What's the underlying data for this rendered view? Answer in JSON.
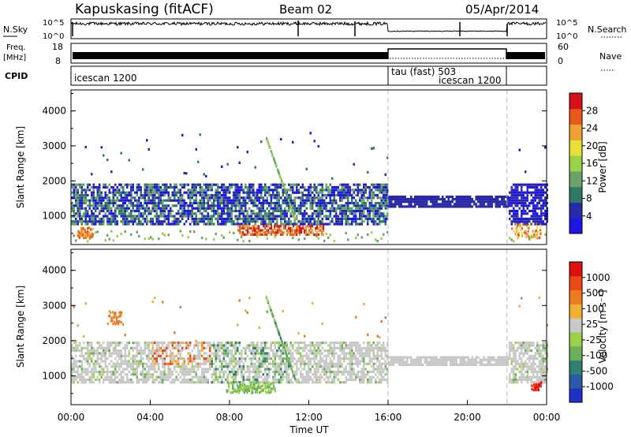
{
  "header": {
    "title": "Kapuskasing (fitACF)",
    "beam": "Beam 02",
    "date": "05/Apr/2014"
  },
  "strips": {
    "nsky_label": "N.Sky",
    "nsky_ticks": [
      "10^5",
      "10^0"
    ],
    "nsky_right_ticks": [
      "10^5",
      "10^0"
    ],
    "nsearch_label": "N.Search",
    "freq_label": "Freq.",
    "freq_unit": "[MHz]",
    "freq_ticks": [
      "18",
      "8"
    ],
    "nave_ticks": [
      "60",
      "0"
    ],
    "nave_label": "Nave",
    "cpid_label": "CPID",
    "cpid_segments": [
      {
        "label": "icescan 1200",
        "start_h": 0,
        "end_h": 16
      },
      {
        "label": "tau (fast) 503",
        "start_h": 16,
        "end_h": 22
      },
      {
        "label": "icescan 1200",
        "start_h": 16,
        "end_h": 22,
        "offset": true
      }
    ]
  },
  "chart_data": [
    {
      "type": "heatmap",
      "name": "power",
      "ylabel": "Slant Range [km]",
      "xlabel": "",
      "xlim": [
        0,
        24
      ],
      "ylim": [
        180,
        4600
      ],
      "yticks": [
        "1000",
        "2000",
        "3000",
        "4000"
      ],
      "colorbar": {
        "label": "Power [dB]",
        "ticks": [
          "4",
          "8",
          "12",
          "16",
          "20",
          "24",
          "28"
        ],
        "colors": [
          "#1e16e6",
          "#2a2aa8",
          "#2e7a66",
          "#6aa36a",
          "#9ad14a",
          "#e8e03a",
          "#f0a030",
          "#e85a1a",
          "#d8101a"
        ]
      }
    },
    {
      "type": "heatmap",
      "name": "velocity",
      "ylabel": "Slant Range [km]",
      "xlabel": "Time UT",
      "xlim": [
        0,
        24
      ],
      "ylim": [
        180,
        4600
      ],
      "yticks": [
        "1000",
        "2000",
        "3000",
        "4000"
      ],
      "xticks": [
        "00:00",
        "04:00",
        "08:00",
        "12:00",
        "16:00",
        "20:00",
        "00:00"
      ],
      "colorbar": {
        "label": "Velocity [m s⁻¹]",
        "ticks": [
          "1000",
          "500",
          "100",
          "25",
          "-25",
          "-100",
          "-500",
          "-1000"
        ],
        "colors": [
          "#2030c8",
          "#2a5aa8",
          "#2e8070",
          "#6ab05a",
          "#9ad04a",
          "#c8c8c8",
          "#f0b030",
          "#f07a20",
          "#e84a18",
          "#e01010"
        ]
      }
    }
  ]
}
